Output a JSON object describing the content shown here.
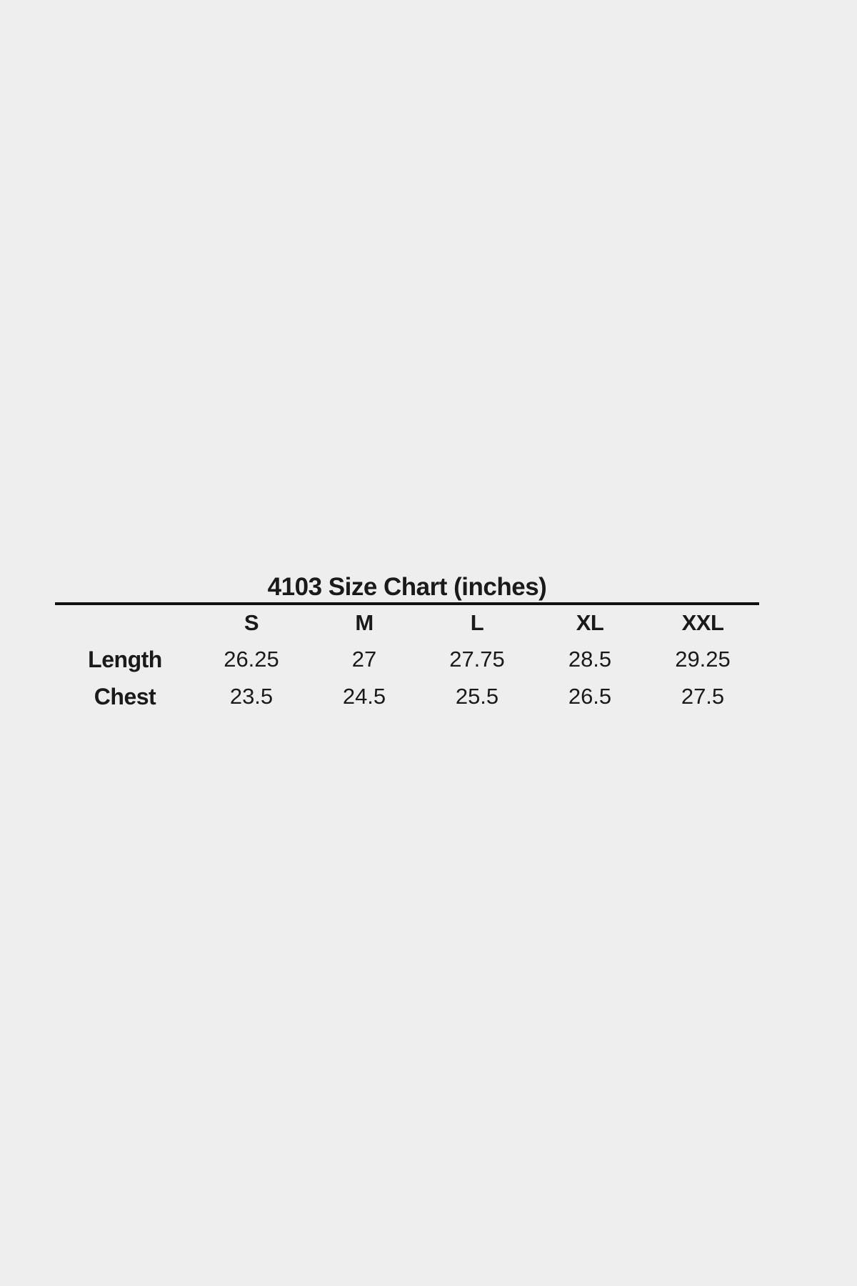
{
  "page": {
    "background_color": "#eeeeee",
    "text_color": "#1a1a1a",
    "rule_color": "#111111"
  },
  "chart_data": {
    "type": "table",
    "title": "4103 Size Chart (inches)",
    "style_number": "4103",
    "units": "inches",
    "columns": [
      "S",
      "M",
      "L",
      "XL",
      "XXL"
    ],
    "rows": [
      {
        "label": "Length",
        "values": [
          "26.25",
          "27",
          "27.75",
          "28.5",
          "29.25"
        ]
      },
      {
        "label": "Chest",
        "values": [
          "23.5",
          "24.5",
          "25.5",
          "26.5",
          "27.5"
        ]
      }
    ],
    "layout_hints": {
      "title_position": "top-center",
      "rule_under_title": true,
      "gridlines": "none",
      "header_row_bold": true,
      "row_labels_bold": true
    }
  }
}
